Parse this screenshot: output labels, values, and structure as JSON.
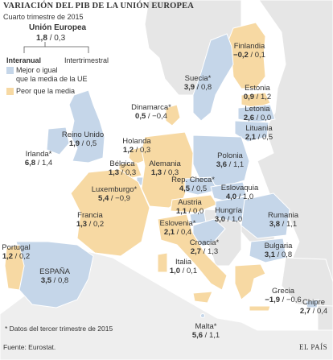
{
  "title": "VARIACIÓN DEL PIB DE LA UNIÓN EUROPEA",
  "subtitle": "Cuarto trimestre de 2015",
  "eu": {
    "name": "Unión Europea",
    "interanual": "1,8",
    "intertrimestral": "0,3"
  },
  "legend": {
    "interanual_label": "Interanual",
    "intertrimestral_label": "Intertrimestral",
    "items": [
      {
        "label": "Mejor o igual\nque la media de la UE",
        "color": "#c5d6e9"
      },
      {
        "label": "Peor que la media",
        "color": "#f7d9a3"
      }
    ]
  },
  "colors": {
    "better": "#c5d6e9",
    "worse": "#f7d9a3",
    "nonEU": "#e6e6e6",
    "sea": "#ffffff",
    "border": "#ffffff"
  },
  "countries": [
    {
      "name": "Finlandia",
      "interanual": "−0,2",
      "intertrimestral": "0,1",
      "category": "worse"
    },
    {
      "name": "Suecia*",
      "interanual": "3,9",
      "intertrimestral": "0,8",
      "category": "better"
    },
    {
      "name": "Estonia",
      "interanual": "0,9",
      "intertrimestral": "1,2",
      "category": "worse"
    },
    {
      "name": "Letonia",
      "interanual": "2,6",
      "intertrimestral": "0,0",
      "category": "better"
    },
    {
      "name": "Lituania",
      "interanual": "2,1",
      "intertrimestral": "0,5",
      "category": "better"
    },
    {
      "name": "Dinamarca*",
      "interanual": "0,5",
      "intertrimestral": "−0,4",
      "category": "worse"
    },
    {
      "name": "Reino Unido",
      "interanual": "1,9",
      "intertrimestral": "0,5",
      "category": "better"
    },
    {
      "name": "Holanda",
      "interanual": "1,2",
      "intertrimestral": "0,3",
      "category": "worse"
    },
    {
      "name": "Irlanda*",
      "interanual": "6,8",
      "intertrimestral": "1,4",
      "category": "better"
    },
    {
      "name": "Bélgica",
      "interanual": "1,3",
      "intertrimestral": "0,3",
      "category": "worse"
    },
    {
      "name": "Alemania",
      "interanual": "1,3",
      "intertrimestral": "0,3",
      "category": "worse"
    },
    {
      "name": "Polonia",
      "interanual": "3,6",
      "intertrimestral": "1,1",
      "category": "better"
    },
    {
      "name": "Luxemburgo*",
      "interanual": "5,4",
      "intertrimestral": "−0,9",
      "category": "better"
    },
    {
      "name": "Rep. Checa*",
      "interanual": "4,5",
      "intertrimestral": "0,5",
      "category": "better"
    },
    {
      "name": "Eslovaquia",
      "interanual": "4,0",
      "intertrimestral": "1,0",
      "category": "better"
    },
    {
      "name": "Francia",
      "interanual": "1,3",
      "intertrimestral": "0,2",
      "category": "worse"
    },
    {
      "name": "Austria",
      "interanual": "1,1",
      "intertrimestral": "0,0",
      "category": "worse"
    },
    {
      "name": "Hungría",
      "interanual": "3,0",
      "intertrimestral": "1,0",
      "category": "better"
    },
    {
      "name": "Eslovenia*",
      "interanual": "2,1",
      "intertrimestral": "0,4",
      "category": "better"
    },
    {
      "name": "Rumania",
      "interanual": "3,8",
      "intertrimestral": "1,1",
      "category": "better"
    },
    {
      "name": "Croacia*",
      "interanual": "2,7",
      "intertrimestral": "1,3",
      "category": "better"
    },
    {
      "name": "Portugal",
      "interanual": "1,2",
      "intertrimestral": "0,2",
      "category": "worse"
    },
    {
      "name": "Bulgaria",
      "interanual": "3,1",
      "intertrimestral": "0,8",
      "category": "better"
    },
    {
      "name": "ESPAÑA",
      "interanual": "3,5",
      "intertrimestral": "0,8",
      "category": "better"
    },
    {
      "name": "Italia",
      "interanual": "1,0",
      "intertrimestral": "0,1",
      "category": "worse"
    },
    {
      "name": "Grecia",
      "interanual": "−1,9",
      "intertrimestral": "−0,6",
      "category": "worse"
    },
    {
      "name": "Malta*",
      "interanual": "5,6",
      "intertrimestral": "1,1",
      "category": "better"
    },
    {
      "name": "Chipre",
      "interanual": "2,7",
      "intertrimestral": "0,4",
      "category": "better"
    }
  ],
  "footnote": "* Datos del tercer trimestre de 2015",
  "source": "Fuente: Eurostat.",
  "brand": "EL PAÍS"
}
